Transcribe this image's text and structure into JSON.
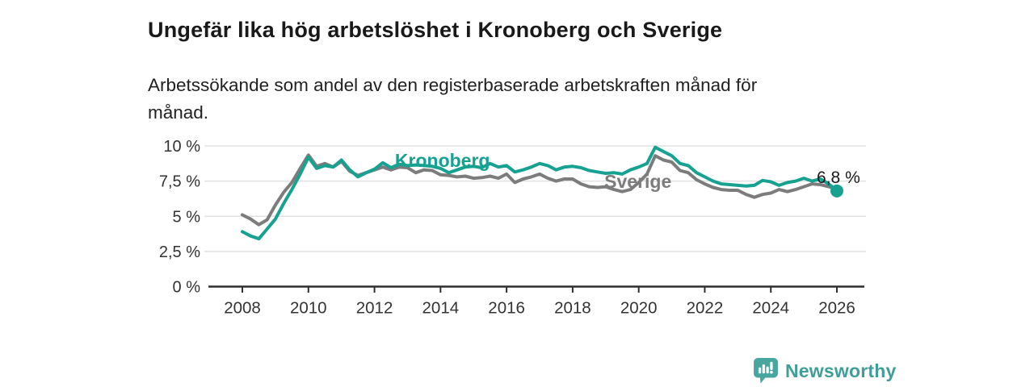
{
  "header": {
    "title": "Ungefär lika hög arbetslöshet i Kronoberg och Sverige",
    "subtitle": "Arbetssökande som andel av den registerbaserade arbetskraften månad för månad."
  },
  "chart_data": {
    "type": "line",
    "title": "Ungefär lika hög arbetslöshet i Kronoberg och Sverige",
    "subtitle": "Arbetssökande som andel av den registerbaserade arbetskraften månad för månad.",
    "unit": "%",
    "grid": "horizontal",
    "legend_position": "inline-labels",
    "xlim": [
      2007.0,
      2026.9
    ],
    "ylim": [
      0,
      10.5
    ],
    "yticks": [
      {
        "value": 0,
        "label": "0 %"
      },
      {
        "value": 2.5,
        "label": "2,5 %"
      },
      {
        "value": 5,
        "label": "5 %"
      },
      {
        "value": 7.5,
        "label": "7,5 %"
      },
      {
        "value": 10,
        "label": "10 %"
      }
    ],
    "xticks": [
      {
        "value": 2008,
        "label": "2008"
      },
      {
        "value": 2010,
        "label": "2010"
      },
      {
        "value": 2012,
        "label": "2012"
      },
      {
        "value": 2014,
        "label": "2014"
      },
      {
        "value": 2016,
        "label": "2016"
      },
      {
        "value": 2018,
        "label": "2018"
      },
      {
        "value": 2020,
        "label": "2020"
      },
      {
        "value": 2022,
        "label": "2022"
      },
      {
        "value": 2024,
        "label": "2024"
      },
      {
        "value": 2026,
        "label": "2026"
      }
    ],
    "x": [
      2008,
      2008.25,
      2008.5,
      2008.75,
      2009,
      2009.25,
      2009.5,
      2009.75,
      2010,
      2010.25,
      2010.5,
      2010.75,
      2011,
      2011.25,
      2011.5,
      2011.75,
      2012,
      2012.25,
      2012.5,
      2012.75,
      2013,
      2013.25,
      2013.5,
      2013.75,
      2014,
      2014.25,
      2014.5,
      2014.75,
      2015,
      2015.25,
      2015.5,
      2015.75,
      2016,
      2016.25,
      2016.5,
      2016.75,
      2017,
      2017.25,
      2017.5,
      2017.75,
      2018,
      2018.25,
      2018.5,
      2018.75,
      2019,
      2019.25,
      2019.5,
      2019.75,
      2020,
      2020.25,
      2020.5,
      2020.75,
      2021,
      2021.25,
      2021.5,
      2021.75,
      2022,
      2022.25,
      2022.5,
      2022.75,
      2023,
      2023.25,
      2023.5,
      2023.75,
      2024,
      2024.25,
      2024.5,
      2024.75,
      2025,
      2025.25,
      2025.5,
      2025.75,
      2026
    ],
    "series": [
      {
        "name": "Kronoberg",
        "color": "#17a191",
        "values": [
          3.9,
          3.6,
          3.4,
          4.1,
          4.8,
          5.9,
          6.9,
          8.0,
          9.2,
          8.4,
          8.6,
          8.5,
          9.0,
          8.3,
          7.8,
          8.1,
          8.35,
          8.8,
          8.45,
          8.7,
          8.6,
          8.65,
          8.6,
          8.55,
          8.4,
          8.1,
          8.3,
          8.5,
          8.55,
          8.45,
          8.75,
          8.5,
          8.6,
          8.15,
          8.3,
          8.5,
          8.75,
          8.6,
          8.3,
          8.5,
          8.55,
          8.45,
          8.25,
          8.15,
          8.05,
          8.1,
          8.0,
          8.3,
          8.5,
          8.75,
          9.9,
          9.6,
          9.3,
          8.75,
          8.6,
          8.1,
          7.8,
          7.5,
          7.3,
          7.25,
          7.2,
          7.15,
          7.2,
          7.55,
          7.45,
          7.2,
          7.4,
          7.5,
          7.7,
          7.5,
          7.65,
          7.3,
          6.8
        ]
      },
      {
        "name": "Sverige",
        "color": "#7c7c7c",
        "values": [
          5.1,
          4.8,
          4.4,
          4.75,
          5.8,
          6.7,
          7.4,
          8.4,
          9.35,
          8.55,
          8.75,
          8.5,
          8.9,
          8.2,
          7.9,
          8.1,
          8.3,
          8.5,
          8.3,
          8.5,
          8.45,
          8.1,
          8.3,
          8.25,
          7.95,
          7.9,
          7.8,
          7.85,
          7.7,
          7.75,
          7.85,
          7.7,
          8.0,
          7.4,
          7.65,
          7.8,
          8.0,
          7.7,
          7.5,
          7.65,
          7.65,
          7.3,
          7.1,
          7.05,
          7.1,
          6.9,
          6.75,
          6.9,
          7.4,
          8.0,
          9.3,
          9.0,
          8.85,
          8.25,
          8.1,
          7.6,
          7.3,
          7.05,
          6.9,
          6.85,
          6.85,
          6.55,
          6.35,
          6.55,
          6.65,
          6.9,
          6.75,
          6.9,
          7.1,
          7.3,
          7.25,
          7.1,
          6.95
        ]
      }
    ],
    "end_dot": {
      "series": "Kronoberg",
      "value_label": "6,8 %"
    },
    "annotations": [
      {
        "text": "Kronoberg",
        "year": 2012.62,
        "value": 8.51,
        "color": "#17a191",
        "size": 23,
        "bold": true
      },
      {
        "text": "Sverige",
        "year": 2018.96,
        "value": 7.02,
        "color": "#7c7c7c",
        "size": 23,
        "bold": true
      },
      {
        "text": "6,8 %",
        "year": 2025.39,
        "value": 7.36,
        "color": "#1a1a1a",
        "size": 21,
        "bold": false
      }
    ],
    "colors": {
      "axis": "#2e2e2e",
      "gridline": "#e1e1e1",
      "tick_label": "#333333"
    }
  },
  "footer": {
    "brand": "Newsworthy",
    "logo_icon": "newsworthy-bar-chart-bubble-icon",
    "brand_color": "#3f9e98",
    "logo_color": "#48a6a0"
  }
}
